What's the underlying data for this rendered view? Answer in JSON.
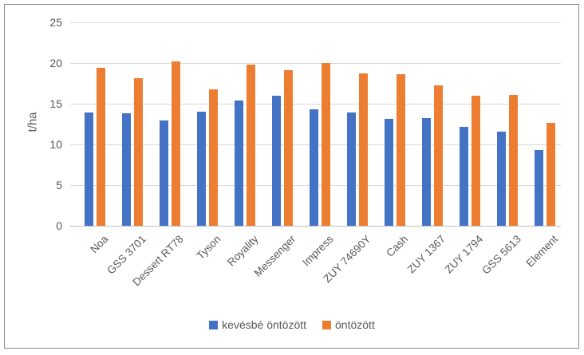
{
  "chart_data": {
    "type": "bar",
    "title": "",
    "xlabel": "",
    "ylabel": "t/ha",
    "ylim": [
      0,
      25
    ],
    "ytick_step": 5,
    "yticks": [
      0,
      5,
      10,
      15,
      20,
      25
    ],
    "grid": true,
    "legend_position": "bottom",
    "categories": [
      "Noa",
      "GSS 3701",
      "Dessert RT78",
      "Tyson",
      "Royality",
      "Messenger",
      "Impress",
      "ZUY 74690Y",
      "Cash",
      "ZUY 1367",
      "ZUY 1794",
      "GSS 5613",
      "Element"
    ],
    "series": [
      {
        "name": "kevésbé öntözött",
        "color": "#4472C4",
        "values": [
          13.9,
          13.8,
          12.9,
          14.0,
          15.4,
          16.0,
          14.3,
          13.9,
          13.1,
          13.2,
          12.2,
          11.6,
          9.3
        ]
      },
      {
        "name": "öntözött",
        "color": "#ED7D31",
        "values": [
          19.4,
          18.1,
          20.2,
          16.8,
          19.8,
          19.1,
          20.0,
          18.7,
          18.6,
          17.3,
          16.0,
          16.1,
          12.6
        ]
      }
    ]
  },
  "colors": {
    "series_blue": "#4472C4",
    "series_orange": "#ED7D31",
    "gridline": "#D9D9D9",
    "axis_line": "#BFBFBF",
    "text": "#595959",
    "frame_border": "#8C8C8C"
  }
}
